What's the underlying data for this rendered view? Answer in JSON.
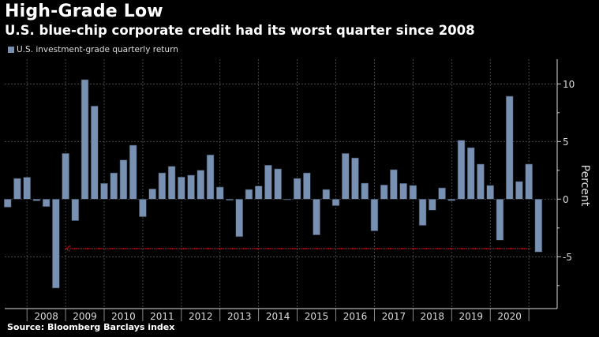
{
  "chart_data": {
    "type": "bar",
    "title": "High-Grade Low",
    "subtitle": "U.S. blue-chip corporate credit had its worst quarter since 2008",
    "legend": [
      {
        "name": "U.S. investment-grade quarterly return",
        "color": "#7890b2"
      }
    ],
    "legend_position": "top-left",
    "ylabel": "Percent",
    "xlabel": "",
    "ylim": [
      -9.5,
      12.1
    ],
    "yticks": [
      10,
      5,
      0,
      -5
    ],
    "ytick_labels": [
      "10",
      "5",
      "0",
      "-5"
    ],
    "year_labels": [
      "2008",
      "2009",
      "2010",
      "2011",
      "2012",
      "2013",
      "2014",
      "2015",
      "2016",
      "2017",
      "2018",
      "2019",
      "2020"
    ],
    "grid": true,
    "categories": [
      "2007Q2",
      "2007Q3",
      "2007Q4",
      "2008Q1",
      "2008Q2",
      "2008Q3",
      "2008Q4",
      "2009Q1",
      "2009Q2",
      "2009Q3",
      "2009Q4",
      "2010Q1",
      "2010Q2",
      "2010Q3",
      "2010Q4",
      "2011Q1",
      "2011Q2",
      "2011Q3",
      "2011Q4",
      "2012Q1",
      "2012Q2",
      "2012Q3",
      "2012Q4",
      "2013Q1",
      "2013Q2",
      "2013Q3",
      "2013Q4",
      "2014Q1",
      "2014Q2",
      "2014Q3",
      "2014Q4",
      "2015Q1",
      "2015Q2",
      "2015Q3",
      "2015Q4",
      "2016Q1",
      "2016Q2",
      "2016Q3",
      "2016Q4",
      "2017Q1",
      "2017Q2",
      "2017Q3",
      "2017Q4",
      "2018Q1",
      "2018Q2",
      "2018Q3",
      "2018Q4",
      "2019Q1",
      "2019Q2",
      "2019Q3",
      "2019Q4",
      "2020Q1",
      "2020Q2",
      "2020Q3",
      "2020Q4",
      "2021Q1"
    ],
    "values": [
      -0.7,
      1.8,
      1.9,
      -0.15,
      -0.65,
      -7.72,
      3.97,
      -1.87,
      10.37,
      8.08,
      1.37,
      2.28,
      3.4,
      4.68,
      -1.53,
      0.89,
      2.28,
      2.85,
      1.92,
      2.08,
      2.51,
      3.84,
      1.05,
      -0.1,
      -3.26,
      0.84,
      1.14,
      2.95,
      2.63,
      -0.05,
      1.8,
      2.28,
      -3.11,
      0.84,
      -0.57,
      3.97,
      3.58,
      1.39,
      -2.76,
      1.23,
      2.56,
      1.37,
      1.19,
      -2.28,
      -0.96,
      0.98,
      -0.14,
      5.11,
      4.47,
      3.04,
      1.19,
      -3.56,
      8.93,
      1.53,
      3.04,
      -4.59
    ],
    "annotation": {
      "type": "arrow",
      "from": "2021Q1",
      "to": "2008Q4",
      "value": -4.3,
      "color": "#e0102a"
    },
    "source": "Source: Bloomberg Barclays index"
  }
}
